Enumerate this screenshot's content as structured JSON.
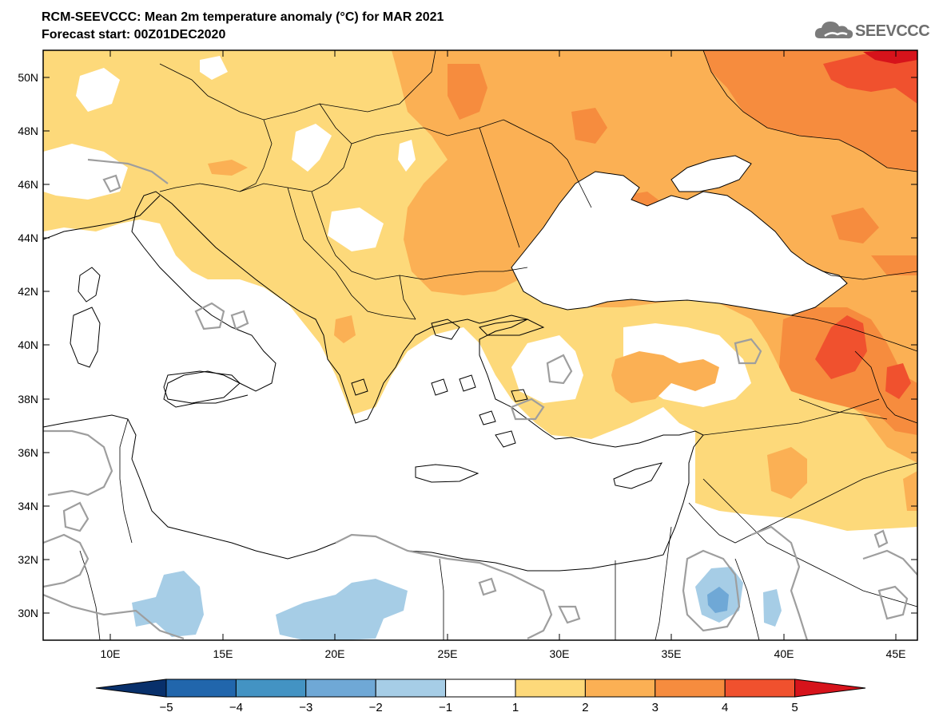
{
  "header": {
    "title": "RCM-SEEVCCC: Mean 2m temperature anomaly (°C) for MAR 2021",
    "subtitle": "Forecast start: 00Z01DEC2020"
  },
  "logo": {
    "text": "SEEVCCC",
    "icon": "cloud-icon"
  },
  "map": {
    "lon_range": [
      7,
      46
    ],
    "lat_range": [
      29,
      51
    ],
    "lat_ticks": [
      "50N",
      "48N",
      "46N",
      "44N",
      "42N",
      "40N",
      "38N",
      "36N",
      "34N",
      "32N",
      "30N"
    ],
    "lon_ticks": [
      "10E",
      "15E",
      "20E",
      "25E",
      "30E",
      "35E",
      "40E",
      "45E"
    ]
  },
  "colorbar": {
    "labels": [
      "−5",
      "−4",
      "−3",
      "−2",
      "−1",
      "1",
      "2",
      "3",
      "4",
      "5"
    ],
    "colors": [
      "#08306b",
      "#2166ac",
      "#4393c3",
      "#6fa8d6",
      "#a6cde6",
      "#ffffff",
      "#fdd97a",
      "#fbb054",
      "#f68c3e",
      "#f0512e",
      "#d6131b"
    ]
  }
}
